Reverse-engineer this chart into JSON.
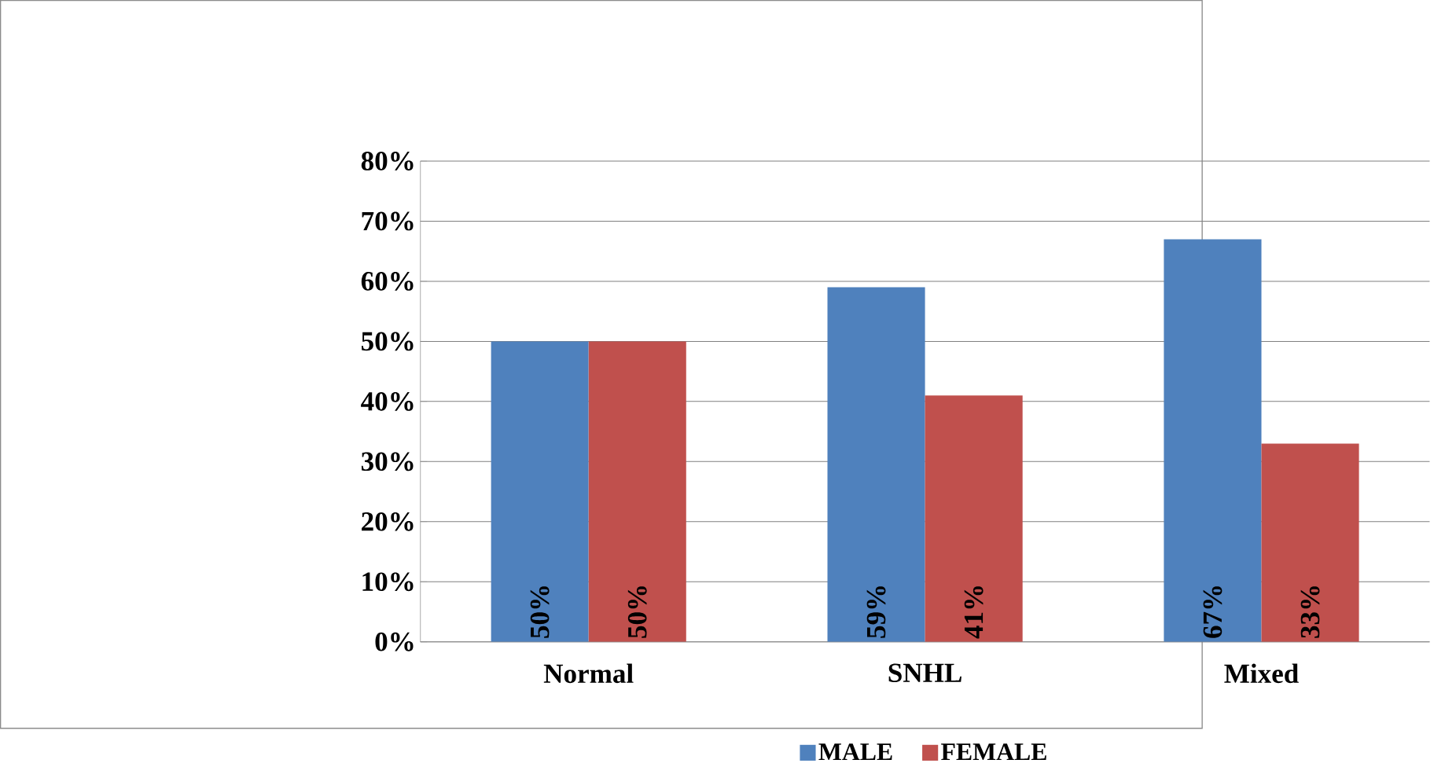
{
  "chart_data": {
    "type": "bar",
    "categories": [
      "Normal",
      "SNHL",
      "Mixed"
    ],
    "series": [
      {
        "name": "MALE",
        "color": "#4f81bd",
        "values": [
          50,
          59,
          67
        ],
        "value_labels": [
          "50%",
          "59%",
          "67%"
        ]
      },
      {
        "name": "FEMALE",
        "color": "#c0504d",
        "values": [
          50,
          41,
          33
        ],
        "value_labels": [
          "50%",
          "41%",
          "33%"
        ]
      }
    ],
    "ylim": [
      0,
      80
    ],
    "yticks": [
      {
        "value": 0,
        "label": "0%"
      },
      {
        "value": 10,
        "label": "10%"
      },
      {
        "value": 20,
        "label": "20%"
      },
      {
        "value": 30,
        "label": "30%"
      },
      {
        "value": 40,
        "label": "40%"
      },
      {
        "value": 50,
        "label": "50%"
      },
      {
        "value": 60,
        "label": "60%"
      },
      {
        "value": 70,
        "label": "70%"
      },
      {
        "value": 80,
        "label": "80%"
      }
    ],
    "grid": "y",
    "legend": "bottom"
  }
}
